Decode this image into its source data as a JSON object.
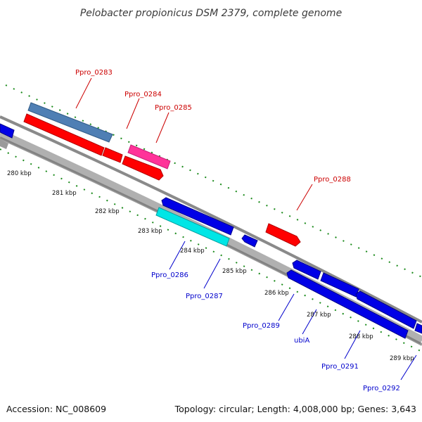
{
  "title": "Pelobacter propionicus DSM 2379, complete genome",
  "footer": {
    "accession": "Accession: NC_008609",
    "summary": "Topology: circular; Length: 4,008,000 bp; Genes: 3,643"
  },
  "colors": {
    "backbone": "#8c8c8c",
    "backbone_dark": "#6f6f6f",
    "tick": "#1a8a1a",
    "forward_label": "#cc0000",
    "reverse_label": "#0000cc",
    "red_gene": "#ff0000",
    "blue_gene": "#0000e6",
    "steel_gene": "#4f7fb4",
    "magenta_gene": "#ff3399",
    "cyan_gene": "#00e6e6"
  },
  "scale_labels": [
    "280 kbp",
    "281 kbp",
    "282 kbp",
    "283 kbp",
    "284 kbp",
    "285 kbp",
    "286 kbp",
    "287 kbp",
    "288 kbp",
    "289 kbp"
  ],
  "genes_forward": [
    {
      "name": "Ppro_0283",
      "color": "steel"
    },
    {
      "name": "Ppro_0284",
      "color": "red"
    },
    {
      "name": "Ppro_0285",
      "color": "magenta"
    },
    {
      "name": "Ppro_0288",
      "color": "red"
    }
  ],
  "genes_reverse": [
    {
      "name": "Ppro_0286",
      "color": "blue"
    },
    {
      "name": "Ppro_0287",
      "color": "cyan"
    },
    {
      "name": "Ppro_0289",
      "color": "blue"
    },
    {
      "name": "ubiA",
      "color": "blue"
    },
    {
      "name": "Ppro_0291",
      "color": "blue"
    },
    {
      "name": "Ppro_0292",
      "color": "blue"
    }
  ]
}
